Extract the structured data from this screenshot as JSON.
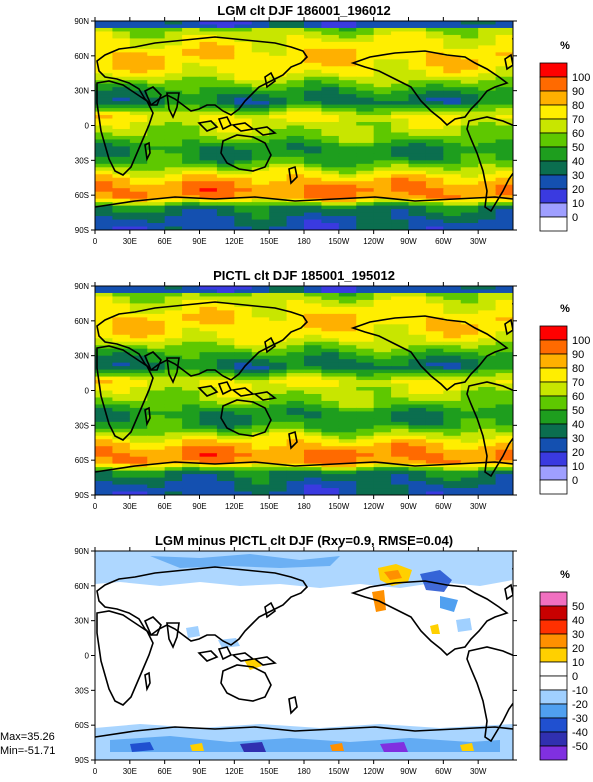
{
  "chart_data": [
    {
      "type": "heatmap",
      "id": "p1",
      "title": "LGM clt DJF 186001_196012",
      "unit": "%",
      "x_ticks": [
        "0",
        "30E",
        "60E",
        "90E",
        "120E",
        "150E",
        "180",
        "150W",
        "120W",
        "90W",
        "60W",
        "30W"
      ],
      "y_ticks": [
        "90N",
        "60N",
        "30N",
        "0",
        "30S",
        "60S",
        "90S"
      ],
      "xlim": [
        0,
        360
      ],
      "ylim": [
        -90,
        90
      ],
      "levels": [
        "100",
        "90",
        "80",
        "70",
        "60",
        "50",
        "40",
        "30",
        "20",
        "10",
        "0"
      ],
      "colors": [
        "#ff0000",
        "#ff6a00",
        "#ffb000",
        "#ffee00",
        "#c8e600",
        "#5ec800",
        "#1e9e1e",
        "#0b6e4f",
        "#1450b0",
        "#3a3ae0",
        "#9f9fff",
        "#ffffff"
      ],
      "field_profile": [
        {
          "lat": 85,
          "value": 55
        },
        {
          "lat": 75,
          "value": 70
        },
        {
          "lat": 60,
          "value": 80
        },
        {
          "lat": 45,
          "value": 72
        },
        {
          "lat": 30,
          "value": 45
        },
        {
          "lat": 20,
          "value": 35
        },
        {
          "lat": 8,
          "value": 72
        },
        {
          "lat": 0,
          "value": 65
        },
        {
          "lat": -10,
          "value": 58
        },
        {
          "lat": -20,
          "value": 40
        },
        {
          "lat": -30,
          "value": 45
        },
        {
          "lat": -45,
          "value": 80
        },
        {
          "lat": -55,
          "value": 92
        },
        {
          "lat": -62,
          "value": 88
        },
        {
          "lat": -70,
          "value": 40
        },
        {
          "lat": -80,
          "value": 30
        },
        {
          "lat": -90,
          "value": 25
        }
      ]
    },
    {
      "type": "heatmap",
      "id": "p2",
      "title": "PICTL clt DJF 185001_195012",
      "unit": "%",
      "x_ticks": [
        "0",
        "30E",
        "60E",
        "90E",
        "120E",
        "150E",
        "180",
        "150W",
        "120W",
        "90W",
        "60W",
        "30W"
      ],
      "y_ticks": [
        "90N",
        "60N",
        "30N",
        "0",
        "30S",
        "60S",
        "90S"
      ],
      "xlim": [
        0,
        360
      ],
      "ylim": [
        -90,
        90
      ],
      "levels": [
        "100",
        "90",
        "80",
        "70",
        "60",
        "50",
        "40",
        "30",
        "20",
        "10",
        "0"
      ],
      "colors": [
        "#ff0000",
        "#ff6a00",
        "#ffb000",
        "#ffee00",
        "#c8e600",
        "#5ec800",
        "#1e9e1e",
        "#0b6e4f",
        "#1450b0",
        "#3a3ae0",
        "#9f9fff",
        "#ffffff"
      ],
      "field_profile": [
        {
          "lat": 85,
          "value": 55
        },
        {
          "lat": 75,
          "value": 70
        },
        {
          "lat": 60,
          "value": 80
        },
        {
          "lat": 45,
          "value": 72
        },
        {
          "lat": 30,
          "value": 45
        },
        {
          "lat": 20,
          "value": 35
        },
        {
          "lat": 8,
          "value": 72
        },
        {
          "lat": 0,
          "value": 65
        },
        {
          "lat": -10,
          "value": 58
        },
        {
          "lat": -20,
          "value": 40
        },
        {
          "lat": -30,
          "value": 45
        },
        {
          "lat": -45,
          "value": 80
        },
        {
          "lat": -55,
          "value": 92
        },
        {
          "lat": -62,
          "value": 88
        },
        {
          "lat": -70,
          "value": 40
        },
        {
          "lat": -80,
          "value": 30
        },
        {
          "lat": -90,
          "value": 25
        }
      ]
    },
    {
      "type": "heatmap",
      "id": "p3",
      "title": "LGM minus PICTL clt DJF (Rxy=0.9, RMSE=0.04)",
      "unit": "%",
      "x_ticks": [
        "0",
        "30E",
        "60E",
        "90E",
        "120E",
        "150E",
        "180",
        "150W",
        "120W",
        "90W",
        "60W",
        "30W"
      ],
      "y_ticks": [
        "90N",
        "60N",
        "30N",
        "0",
        "30S",
        "60S",
        "90S"
      ],
      "xlim": [
        0,
        360
      ],
      "ylim": [
        -90,
        90
      ],
      "levels": [
        "50",
        "40",
        "30",
        "20",
        "10",
        "0",
        "-10",
        "-20",
        "-30",
        "-40",
        "-50"
      ],
      "colors": [
        "#f070c0",
        "#c80000",
        "#ff3000",
        "#ff9000",
        "#ffd000",
        "#ffffff",
        "#ffffff",
        "#a0d0ff",
        "#50a0f0",
        "#2050d0",
        "#3030b0",
        "#8030e0"
      ],
      "max_label": "Max=35.26",
      "min_label": "Min=-51.71"
    }
  ]
}
